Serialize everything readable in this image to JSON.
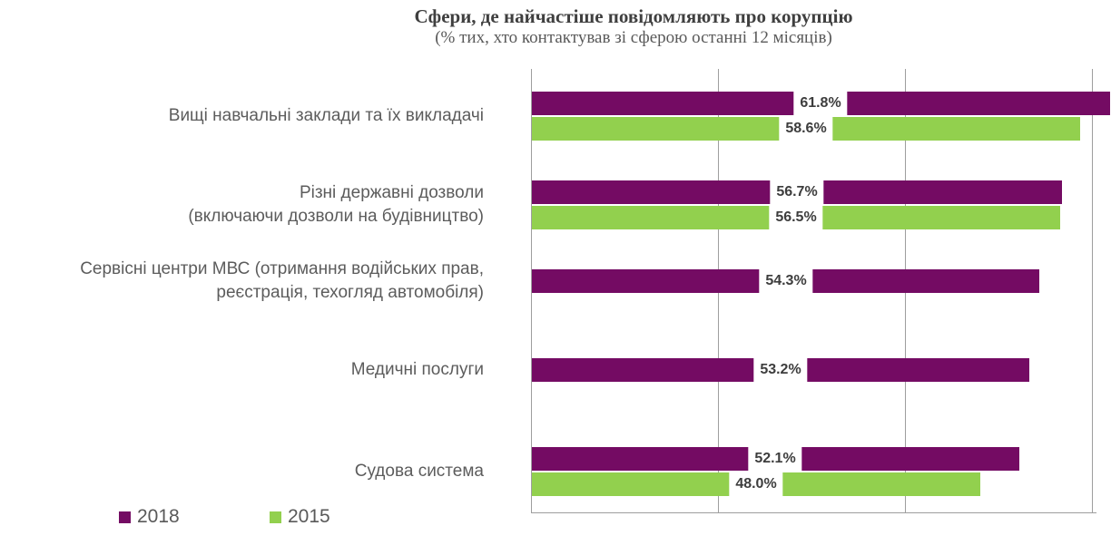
{
  "title": "Сфери, де найчастіше повідомляють про корупцію",
  "subtitle": "(% тих, хто контактував зі сферою останні 12 місяців)",
  "colors": {
    "series_2018": "#740b63",
    "series_2015": "#92d04e",
    "gridline": "#9e9e9e",
    "title_text": "#3f3f3f",
    "label_text": "#5c5c5c",
    "value_text": "#3d3d3d"
  },
  "chart_data": {
    "type": "bar",
    "orientation": "horizontal",
    "title": "Сфери, де найчастіше повідомляють про корупцію",
    "subtitle": "(% тих, хто контактував зі сферою останні 12 місяців)",
    "categories": [
      "Вищі навчальні заклади та їх викладачі",
      "Різні державні дозволи (включаючи дозволи на будівництво)",
      "Сервісні центри МВС (отримання водійських прав, реєстрація, техогляд автомобіля)",
      "Медичні послуги",
      "Судова система"
    ],
    "category_lines": [
      [
        "Вищі навчальні заклади та їх викладачі"
      ],
      [
        "Різні державні дозволи",
        "(включаючи дозволи на будівництво)"
      ],
      [
        "Сервісні центри МВС (отримання водійських прав,",
        "реєстрація, техогляд автомобіля)"
      ],
      [
        "Медичні послуги"
      ],
      [
        "Судова система"
      ]
    ],
    "series": [
      {
        "name": "2018",
        "color": "#740b63",
        "values": [
          61.8,
          56.7,
          54.3,
          53.2,
          52.1
        ],
        "labels": [
          "61.8%",
          "56.7%",
          "54.3%",
          "53.2%",
          "52.1%"
        ]
      },
      {
        "name": "2015",
        "color": "#92d04e",
        "values": [
          58.6,
          56.5,
          null,
          null,
          48.0
        ],
        "labels": [
          "58.6%",
          "56.5%",
          null,
          null,
          "48.0%"
        ]
      }
    ],
    "xlabel": "",
    "ylabel": "",
    "xlim": [
      0,
      60
    ],
    "gridline_values": [
      0,
      20,
      40,
      60
    ],
    "grid": true,
    "axis_tick_labels_shown": false,
    "legend_position": "bottom-left",
    "legend": [
      "2018",
      "2015"
    ]
  }
}
